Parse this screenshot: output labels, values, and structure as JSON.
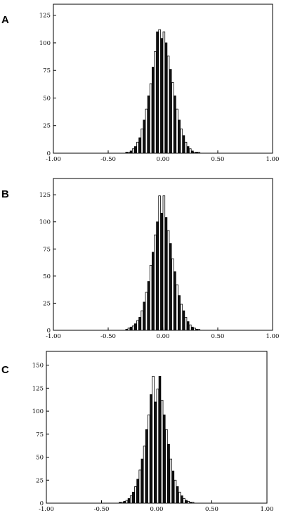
{
  "chart_data": [
    {
      "type": "bar",
      "panel_label": "A",
      "xlim": [
        -1.0,
        1.0
      ],
      "ylim": [
        0,
        135
      ],
      "xticks": [
        "-1.00",
        "-0.50",
        "0.00",
        "0.50",
        "1.00"
      ],
      "yticks": [
        "0",
        "25",
        "50",
        "75",
        "100",
        "125"
      ],
      "ytick_values": [
        0,
        25,
        50,
        75,
        100,
        125
      ],
      "bin_width": 0.02,
      "x": [
        -0.33,
        -0.31,
        -0.29,
        -0.27,
        -0.25,
        -0.23,
        -0.21,
        -0.19,
        -0.17,
        -0.15,
        -0.13,
        -0.11,
        -0.09,
        -0.07,
        -0.05,
        -0.03,
        -0.01,
        0.01,
        0.03,
        0.05,
        0.07,
        0.09,
        0.11,
        0.13,
        0.15,
        0.17,
        0.19,
        0.21,
        0.23,
        0.25,
        0.27,
        0.29,
        0.31,
        0.33
      ],
      "values": [
        1,
        1,
        2,
        4,
        6,
        10,
        14,
        22,
        30,
        40,
        52,
        63,
        78,
        92,
        110,
        112,
        104,
        110,
        100,
        88,
        76,
        64,
        52,
        40,
        30,
        22,
        16,
        10,
        6,
        4,
        2,
        1,
        1,
        1
      ],
      "grid": false
    },
    {
      "type": "bar",
      "panel_label": "B",
      "xlim": [
        -1.0,
        1.0
      ],
      "ylim": [
        0,
        140
      ],
      "xticks": [
        "-1.00",
        "-0.50",
        "0.00",
        "0.50",
        "1.00"
      ],
      "yticks": [
        "0",
        "25",
        "50",
        "75",
        "100",
        "125"
      ],
      "ytick_values": [
        0,
        25,
        50,
        75,
        100,
        125
      ],
      "bin_width": 0.02,
      "x": [
        -0.33,
        -0.31,
        -0.29,
        -0.27,
        -0.25,
        -0.23,
        -0.21,
        -0.19,
        -0.17,
        -0.15,
        -0.13,
        -0.11,
        -0.09,
        -0.07,
        -0.05,
        -0.03,
        -0.01,
        0.01,
        0.03,
        0.05,
        0.07,
        0.09,
        0.11,
        0.13,
        0.15,
        0.17,
        0.19,
        0.21,
        0.23,
        0.25,
        0.27,
        0.29,
        0.31,
        0.33
      ],
      "values": [
        1,
        2,
        3,
        4,
        6,
        9,
        12,
        18,
        26,
        35,
        45,
        60,
        72,
        88,
        100,
        124,
        108,
        124,
        104,
        92,
        80,
        66,
        54,
        42,
        32,
        24,
        18,
        12,
        8,
        5,
        3,
        2,
        1,
        1
      ],
      "grid": false
    },
    {
      "type": "bar",
      "panel_label": "C",
      "xlim": [
        -1.0,
        1.0
      ],
      "ylim": [
        0,
        165
      ],
      "xticks": [
        "-1.00",
        "-0.50",
        "0.00",
        "0.50",
        "1.00"
      ],
      "yticks": [
        "0",
        "25",
        "50",
        "75",
        "100",
        "125",
        "150"
      ],
      "ytick_values": [
        0,
        25,
        50,
        75,
        100,
        125,
        150
      ],
      "bin_width": 0.02,
      "x": [
        -0.33,
        -0.31,
        -0.29,
        -0.27,
        -0.25,
        -0.23,
        -0.21,
        -0.19,
        -0.17,
        -0.15,
        -0.13,
        -0.11,
        -0.09,
        -0.07,
        -0.05,
        -0.03,
        -0.01,
        0.01,
        0.03,
        0.05,
        0.07,
        0.09,
        0.11,
        0.13,
        0.15,
        0.17,
        0.19,
        0.21,
        0.23,
        0.25,
        0.27,
        0.29,
        0.31,
        0.33
      ],
      "values": [
        1,
        1,
        2,
        3,
        5,
        8,
        12,
        18,
        26,
        36,
        48,
        62,
        80,
        96,
        118,
        138,
        110,
        124,
        138,
        112,
        96,
        80,
        64,
        48,
        35,
        25,
        18,
        12,
        8,
        5,
        3,
        2,
        1,
        1
      ],
      "grid": false
    }
  ]
}
